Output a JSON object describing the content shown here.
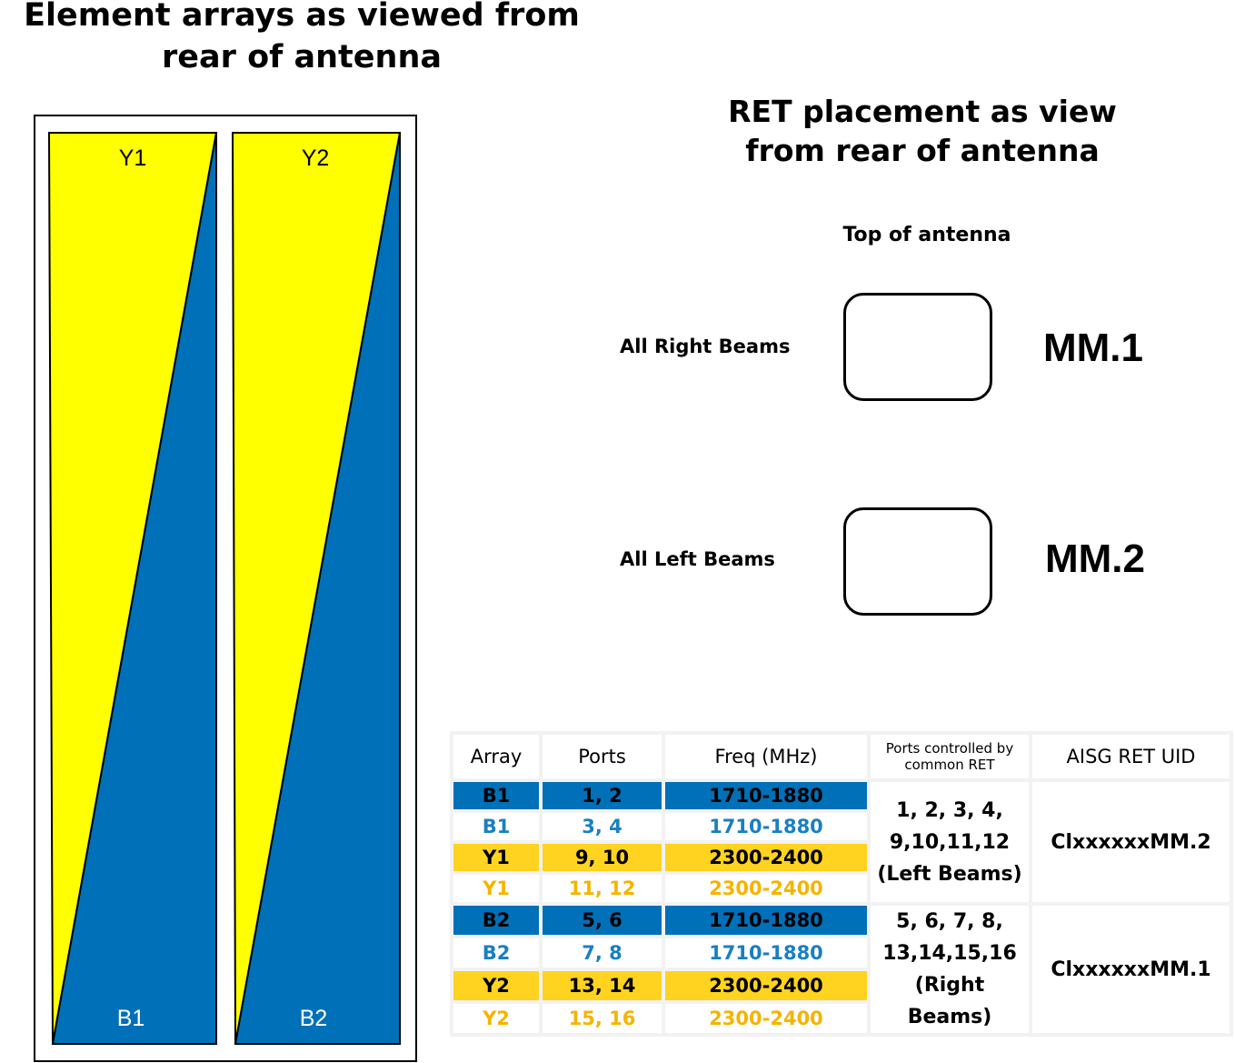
{
  "left_title": "Element arrays as viewed from rear of antenna",
  "right_title": "RET placement as view from rear of antenna",
  "top_label": "Top of antenna",
  "arrays": [
    {
      "top_label": "Y1",
      "bottom_label": "B1"
    },
    {
      "top_label": "Y2",
      "bottom_label": "B2"
    }
  ],
  "ret_units": [
    {
      "beams_label": "All Right Beams",
      "mm_label": "MM.1"
    },
    {
      "beams_label": "All Left Beams",
      "mm_label": "MM.2"
    }
  ],
  "colors": {
    "yellow_element": "#ffff00",
    "blue_element": "#0070b8",
    "yellow_cell": "#ffd320",
    "blue_text": "#1a7fc0",
    "yellow_text": "#f5b400"
  },
  "table": {
    "headers": [
      "Array",
      "Ports",
      "Freq (MHz)",
      "Ports controlled by common RET",
      "AISG RET UID"
    ],
    "rows": [
      {
        "array": "B1",
        "ports": "1, 2",
        "freq": "1710-1880",
        "style": "blue-fill"
      },
      {
        "array": "B1",
        "ports": "3, 4",
        "freq": "1710-1880",
        "style": "blue-text"
      },
      {
        "array": "Y1",
        "ports": "9, 10",
        "freq": "2300-2400",
        "style": "yellow-fill"
      },
      {
        "array": "Y1",
        "ports": "11, 12",
        "freq": "2300-2400",
        "style": "yellow-text"
      },
      {
        "array": "B2",
        "ports": "5, 6",
        "freq": "1710-1880",
        "style": "blue-fill"
      },
      {
        "array": "B2",
        "ports": "7, 8",
        "freq": "1710-1880",
        "style": "blue-text"
      },
      {
        "array": "Y2",
        "ports": "13, 14",
        "freq": "2300-2400",
        "style": "yellow-fill"
      },
      {
        "array": "Y2",
        "ports": "15, 16",
        "freq": "2300-2400",
        "style": "yellow-text"
      }
    ],
    "groups": [
      {
        "ports_controlled": "1, 2, 3, 4, 9,10,11,12 (Left Beams)",
        "uid": "ClxxxxxxMM.2"
      },
      {
        "ports_controlled": "5, 6, 7, 8, 13,14,15,16 (Right Beams)",
        "uid": "ClxxxxxxMM.1"
      }
    ]
  }
}
